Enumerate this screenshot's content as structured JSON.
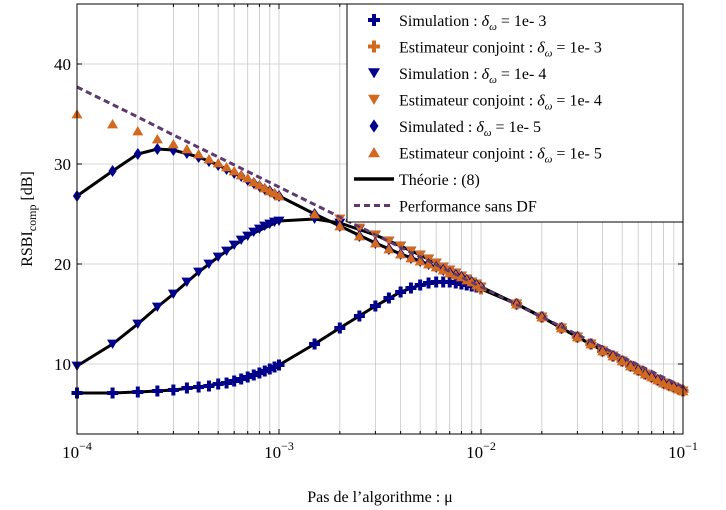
{
  "chart_data": {
    "type": "line",
    "xscale": "log",
    "xlim": [
      0.0001,
      0.1
    ],
    "ylim": [
      3,
      46
    ],
    "grid": true,
    "xlabel": "Pas de l’algorithme : μ",
    "ylabel_main": "RSBI",
    "ylabel_sub": "comp",
    "ylabel_unit": " [dB]",
    "xticks": [
      {
        "value": 0.0001,
        "base": "10",
        "exp": "−4"
      },
      {
        "value": 0.001,
        "base": "10",
        "exp": "−3"
      },
      {
        "value": 0.01,
        "base": "10",
        "exp": "−2"
      },
      {
        "value": 0.1,
        "base": "10",
        "exp": "−1"
      }
    ],
    "yticks": [
      10,
      20,
      30,
      40
    ],
    "legend_position": "top-right",
    "series": [
      {
        "name": "Simulation : δω = 1e- 3",
        "label_pre": "Simulation : ",
        "label_delta": "δ",
        "label_sub": "ω",
        "label_post": " = 1e- 3",
        "color": "#00008B",
        "marker": "plus",
        "kind": "markers",
        "x": [
          0.0001,
          0.00015,
          0.0002,
          0.00025,
          0.0003,
          0.00035,
          0.0004,
          0.00045,
          0.0005,
          0.00055,
          0.0006,
          0.00065,
          0.0007,
          0.00075,
          0.0008,
          0.00085,
          0.0009,
          0.00095,
          0.001,
          0.0015,
          0.002,
          0.0025,
          0.003,
          0.0035,
          0.004,
          0.0045,
          0.005,
          0.0055,
          0.006,
          0.0065,
          0.007,
          0.0075,
          0.008,
          0.0085,
          0.009,
          0.0095,
          0.01,
          0.015,
          0.02,
          0.025,
          0.03,
          0.035,
          0.04,
          0.045,
          0.05,
          0.055,
          0.06,
          0.065,
          0.07,
          0.075,
          0.08,
          0.085,
          0.09,
          0.095,
          0.1
        ],
        "y": [
          7.1,
          7.1,
          7.2,
          7.3,
          7.4,
          7.6,
          7.7,
          7.8,
          8.0,
          8.1,
          8.3,
          8.5,
          8.7,
          8.9,
          9.1,
          9.3,
          9.5,
          9.7,
          9.9,
          12.0,
          13.6,
          14.8,
          15.8,
          16.6,
          17.2,
          17.6,
          17.9,
          18.1,
          18.2,
          18.2,
          18.2,
          18.1,
          18.0,
          17.9,
          17.8,
          17.7,
          17.5,
          16.0,
          14.7,
          13.6,
          12.7,
          12.0,
          11.3,
          10.8,
          10.3,
          9.8,
          9.4,
          9.0,
          8.7,
          8.4,
          8.1,
          7.9,
          7.7,
          7.5,
          7.3
        ]
      },
      {
        "name": "Estimateur conjoint : δω = 1e- 3",
        "label_pre": "Estimateur conjoint : ",
        "label_delta": "δ",
        "label_sub": "ω",
        "label_post": " = 1e- 3",
        "color": "#D2691E",
        "marker": "plus",
        "kind": "markers",
        "x": [
          0.01,
          0.015,
          0.02,
          0.025,
          0.03,
          0.035,
          0.04,
          0.045,
          0.05,
          0.055,
          0.06,
          0.065,
          0.07,
          0.075,
          0.08,
          0.085,
          0.09,
          0.095,
          0.1
        ],
        "y": [
          17.5,
          16.0,
          14.7,
          13.6,
          12.7,
          12.0,
          11.3,
          10.8,
          10.3,
          9.8,
          9.4,
          9.0,
          8.7,
          8.4,
          8.1,
          7.9,
          7.7,
          7.5,
          7.3
        ]
      },
      {
        "name": "Simulation : δω = 1e- 4",
        "label_pre": "Simulation : ",
        "label_delta": "δ",
        "label_sub": "ω",
        "label_post": " = 1e- 4",
        "color": "#00008B",
        "marker": "triangle-down",
        "kind": "markers",
        "x": [
          0.0001,
          0.00015,
          0.0002,
          0.00025,
          0.0003,
          0.00035,
          0.0004,
          0.00045,
          0.0005,
          0.00055,
          0.0006,
          0.00065,
          0.0007,
          0.00075,
          0.0008,
          0.00085,
          0.0009,
          0.00095,
          0.001,
          0.0015,
          0.002,
          0.0025,
          0.003,
          0.0035,
          0.004,
          0.0045,
          0.005,
          0.0055,
          0.006,
          0.0065,
          0.007,
          0.0075,
          0.008,
          0.0085,
          0.009,
          0.0095,
          0.01,
          0.015,
          0.02,
          0.025,
          0.03,
          0.035,
          0.04,
          0.045,
          0.05,
          0.055,
          0.06,
          0.065,
          0.07,
          0.075,
          0.08,
          0.085,
          0.09,
          0.095,
          0.1
        ],
        "y": [
          9.8,
          12.0,
          14.0,
          15.7,
          17.0,
          18.2,
          19.2,
          20.0,
          20.7,
          21.3,
          21.9,
          22.4,
          22.8,
          23.2,
          23.5,
          23.8,
          24.0,
          24.2,
          24.3,
          24.5,
          24.1,
          23.5,
          22.9,
          22.3,
          21.8,
          21.3,
          20.9,
          20.5,
          20.1,
          19.7,
          19.4,
          19.1,
          18.8,
          18.5,
          18.2,
          18.0,
          17.7,
          16.0,
          14.7,
          13.6,
          12.7,
          12.0,
          11.3,
          10.8,
          10.3,
          9.8,
          9.4,
          9.0,
          8.7,
          8.4,
          8.1,
          7.9,
          7.7,
          7.5,
          7.3
        ]
      },
      {
        "name": "Estimateur conjoint : δω = 1e- 4",
        "label_pre": "Estimateur conjoint : ",
        "label_delta": "δ",
        "label_sub": "ω",
        "label_post": " = 1e- 4",
        "color": "#D2691E",
        "marker": "triangle-down",
        "kind": "markers",
        "x": [
          0.002,
          0.0025,
          0.003,
          0.0035,
          0.004,
          0.0045,
          0.005,
          0.0055,
          0.006,
          0.0065,
          0.007,
          0.0075,
          0.008,
          0.0085,
          0.009,
          0.0095,
          0.01,
          0.015,
          0.02,
          0.025,
          0.03,
          0.035,
          0.04,
          0.045,
          0.05,
          0.055,
          0.06,
          0.065,
          0.07,
          0.075,
          0.08,
          0.085,
          0.09,
          0.095,
          0.1
        ],
        "y": [
          24.5,
          23.6,
          22.9,
          22.3,
          21.8,
          21.3,
          20.9,
          20.5,
          20.1,
          19.7,
          19.4,
          19.1,
          18.8,
          18.5,
          18.2,
          18.0,
          17.7,
          16.0,
          14.7,
          13.6,
          12.7,
          12.0,
          11.3,
          10.8,
          10.3,
          9.8,
          9.4,
          9.0,
          8.7,
          8.4,
          8.1,
          7.9,
          7.7,
          7.5,
          7.3
        ]
      },
      {
        "name": "Simulated : δω = 1e- 5",
        "label_pre": "Simulated : ",
        "label_delta": "δ",
        "label_sub": "ω",
        "label_post": " = 1e- 5",
        "color": "#00008B",
        "marker": "diamond",
        "kind": "markers",
        "x": [
          0.0001,
          0.00015,
          0.0002,
          0.00025,
          0.0003,
          0.00035,
          0.0004,
          0.00045,
          0.0005,
          0.00055,
          0.0006,
          0.00065,
          0.0007,
          0.00075,
          0.0008,
          0.00085,
          0.0009,
          0.00095,
          0.001,
          0.0015,
          0.002,
          0.0025,
          0.003,
          0.0035,
          0.004,
          0.0045,
          0.005,
          0.0055,
          0.006,
          0.0065,
          0.007,
          0.0075,
          0.008,
          0.0085,
          0.009,
          0.0095,
          0.01,
          0.015,
          0.02,
          0.025,
          0.03,
          0.035,
          0.04,
          0.045,
          0.05,
          0.055,
          0.06,
          0.065,
          0.07,
          0.075,
          0.08,
          0.085,
          0.09,
          0.095,
          0.1
        ],
        "y": [
          26.8,
          29.3,
          31.0,
          31.5,
          31.4,
          31.1,
          30.7,
          30.3,
          29.9,
          29.5,
          29.1,
          28.8,
          28.4,
          28.1,
          27.8,
          27.5,
          27.3,
          27.0,
          26.8,
          25.0,
          23.8,
          22.8,
          22.1,
          21.5,
          21.0,
          20.6,
          20.3,
          20.0,
          19.7,
          19.4,
          19.1,
          18.9,
          18.7,
          18.4,
          18.2,
          17.9,
          17.7,
          16.0,
          14.7,
          13.6,
          12.7,
          12.0,
          11.3,
          10.8,
          10.3,
          9.8,
          9.4,
          9.0,
          8.7,
          8.4,
          8.1,
          7.9,
          7.7,
          7.5,
          7.3
        ]
      },
      {
        "name": "Estimateur conjoint : δω = 1e- 5",
        "label_pre": "Estimateur conjoint : ",
        "label_delta": "δ",
        "label_sub": "ω",
        "label_post": " = 1e- 5",
        "color": "#D2691E",
        "marker": "triangle-up",
        "kind": "markers",
        "x": [
          0.0001,
          0.00015,
          0.0002,
          0.00025,
          0.0003,
          0.00035,
          0.0004,
          0.00045,
          0.0005,
          0.00055,
          0.0006,
          0.00065,
          0.0007,
          0.00075,
          0.0008,
          0.00085,
          0.0009,
          0.00095,
          0.001,
          0.0015,
          0.002,
          0.0025,
          0.003,
          0.0035,
          0.004,
          0.0045,
          0.005,
          0.0055,
          0.006,
          0.0065,
          0.007,
          0.0075,
          0.008,
          0.0085,
          0.009,
          0.0095,
          0.01,
          0.015,
          0.02,
          0.025,
          0.03,
          0.035,
          0.04,
          0.045,
          0.05,
          0.055,
          0.06,
          0.065,
          0.07,
          0.075,
          0.08,
          0.085,
          0.09,
          0.095,
          0.1
        ],
        "y": [
          35.0,
          34.0,
          33.3,
          32.5,
          32.0,
          31.5,
          31.0,
          30.5,
          30.1,
          29.7,
          29.3,
          28.9,
          28.6,
          28.2,
          27.9,
          27.6,
          27.3,
          27.1,
          26.8,
          25.0,
          23.8,
          22.8,
          22.1,
          21.5,
          21.0,
          20.6,
          20.3,
          20.0,
          19.7,
          19.4,
          19.1,
          18.9,
          18.7,
          18.4,
          18.2,
          17.9,
          17.7,
          16.0,
          14.7,
          13.6,
          12.7,
          12.0,
          11.3,
          10.8,
          10.3,
          9.8,
          9.4,
          9.0,
          8.7,
          8.4,
          8.1,
          7.9,
          7.7,
          7.5,
          7.3
        ]
      },
      {
        "name": "Théorie : (8)",
        "label_pre": "Théorie : (8)",
        "label_delta": "",
        "label_sub": "",
        "label_post": "",
        "color": "#000000",
        "marker": "none",
        "kind": "theory",
        "curves": [
          {
            "x": [
              0.0001,
              0.00015,
              0.0002,
              0.00025,
              0.0003,
              0.0004,
              0.0005,
              0.0007,
              0.001,
              0.0015,
              0.002,
              0.003,
              0.004,
              0.005,
              0.006,
              0.007,
              0.008,
              0.01,
              0.015,
              0.02,
              0.03,
              0.05,
              0.07,
              0.1
            ],
            "y": [
              7.1,
              7.1,
              7.2,
              7.3,
              7.4,
              7.7,
              8.0,
              8.7,
              9.9,
              12.0,
              13.6,
              15.8,
              17.2,
              17.9,
              18.2,
              18.2,
              18.0,
              17.5,
              16.0,
              14.7,
              12.7,
              10.3,
              8.7,
              7.3
            ]
          },
          {
            "x": [
              0.0001,
              0.00015,
              0.0002,
              0.00025,
              0.0003,
              0.0004,
              0.0005,
              0.0007,
              0.001,
              0.0015,
              0.002,
              0.003,
              0.004,
              0.005,
              0.007,
              0.01,
              0.015,
              0.02,
              0.03,
              0.05,
              0.07,
              0.1
            ],
            "y": [
              9.8,
              12.0,
              14.0,
              15.7,
              17.0,
              19.2,
              20.7,
              22.8,
              24.3,
              24.5,
              24.1,
              22.9,
              21.8,
              20.9,
              19.4,
              17.7,
              16.0,
              14.7,
              12.7,
              10.3,
              8.7,
              7.3
            ]
          },
          {
            "x": [
              0.0001,
              0.00015,
              0.0002,
              0.00025,
              0.0003,
              0.0004,
              0.0005,
              0.0007,
              0.001,
              0.0015,
              0.002,
              0.003,
              0.004,
              0.005,
              0.007,
              0.01,
              0.015,
              0.02,
              0.03,
              0.05,
              0.07,
              0.1
            ],
            "y": [
              26.8,
              29.3,
              31.0,
              31.5,
              31.4,
              30.7,
              29.9,
              28.4,
              26.8,
              25.0,
              23.8,
              22.1,
              21.0,
              20.3,
              19.1,
              17.7,
              16.0,
              14.7,
              12.7,
              10.3,
              8.7,
              7.3
            ]
          }
        ]
      },
      {
        "name": "Performance sans DF",
        "label_pre": "Performance sans DF",
        "label_delta": "",
        "label_sub": "",
        "label_post": "",
        "color": "#5E3A6E",
        "marker": "none",
        "kind": "dashed",
        "x": [
          0.0001,
          0.0002,
          0.0003,
          0.0005,
          0.001,
          0.002,
          0.005,
          0.01,
          0.02,
          0.05,
          0.1
        ],
        "y": [
          37.7,
          34.7,
          32.9,
          30.7,
          27.7,
          24.7,
          20.7,
          17.7,
          14.7,
          10.7,
          7.7
        ]
      }
    ]
  }
}
